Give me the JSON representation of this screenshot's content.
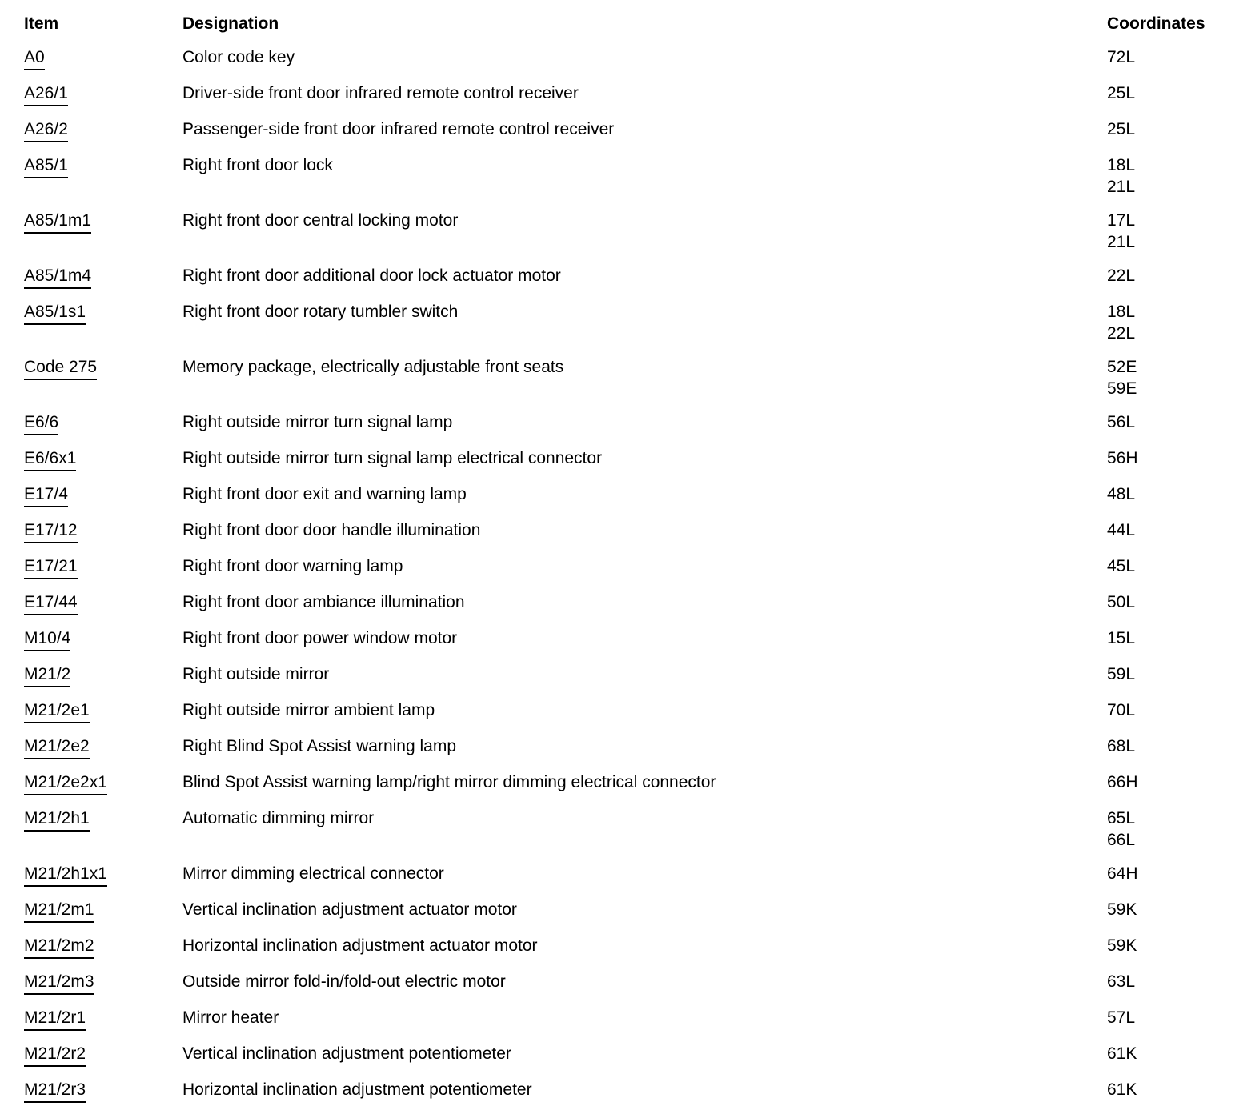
{
  "colors": {
    "text": "#000000",
    "background": "#ffffff"
  },
  "table": {
    "headers": {
      "item": "Item",
      "designation": "Designation",
      "coordinates": "Coordinates"
    },
    "rows": [
      {
        "item": "A0",
        "designation": "Color code key",
        "coordinates": [
          "72L"
        ]
      },
      {
        "item": "A26/1",
        "designation": "Driver-side front door infrared remote control receiver",
        "coordinates": [
          "25L"
        ]
      },
      {
        "item": "A26/2",
        "designation": "Passenger-side front door infrared remote control receiver",
        "coordinates": [
          "25L"
        ]
      },
      {
        "item": "A85/1",
        "designation": "Right front door lock",
        "coordinates": [
          "18L",
          "21L"
        ]
      },
      {
        "item": "A85/1m1",
        "designation": "Right front door central locking motor",
        "coordinates": [
          "17L",
          "21L"
        ]
      },
      {
        "item": "A85/1m4",
        "designation": "Right front door additional door lock actuator motor",
        "coordinates": [
          "22L"
        ]
      },
      {
        "item": "A85/1s1",
        "designation": "Right front door rotary tumbler switch",
        "coordinates": [
          "18L",
          "22L"
        ]
      },
      {
        "item": "Code 275",
        "designation": "Memory package, electrically adjustable front seats",
        "coordinates": [
          "52E",
          "59E"
        ]
      },
      {
        "item": "E6/6",
        "designation": "Right outside mirror turn signal lamp",
        "coordinates": [
          "56L"
        ]
      },
      {
        "item": "E6/6x1",
        "designation": "Right outside mirror turn signal lamp electrical connector",
        "coordinates": [
          "56H"
        ]
      },
      {
        "item": "E17/4",
        "designation": "Right front door exit and warning lamp",
        "coordinates": [
          "48L"
        ]
      },
      {
        "item": "E17/12",
        "designation": "Right front door door handle illumination",
        "coordinates": [
          "44L"
        ]
      },
      {
        "item": "E17/21",
        "designation": "Right front door warning lamp",
        "coordinates": [
          "45L"
        ]
      },
      {
        "item": "E17/44",
        "designation": "Right front door ambiance illumination",
        "coordinates": [
          "50L"
        ]
      },
      {
        "item": "M10/4",
        "designation": "Right front door power window motor",
        "coordinates": [
          "15L"
        ]
      },
      {
        "item": "M21/2",
        "designation": "Right outside mirror",
        "coordinates": [
          "59L"
        ]
      },
      {
        "item": "M21/2e1",
        "designation": "Right outside mirror ambient lamp",
        "coordinates": [
          "70L"
        ]
      },
      {
        "item": "M21/2e2",
        "designation": "Right Blind Spot Assist warning lamp",
        "coordinates": [
          "68L"
        ]
      },
      {
        "item": "M21/2e2x1",
        "designation": "Blind Spot Assist warning lamp/right mirror dimming electrical connector",
        "coordinates": [
          "66H"
        ]
      },
      {
        "item": "M21/2h1",
        "designation": "Automatic dimming mirror",
        "coordinates": [
          "65L",
          "66L"
        ]
      },
      {
        "item": "M21/2h1x1",
        "designation": "Mirror dimming electrical connector",
        "coordinates": [
          "64H"
        ]
      },
      {
        "item": "M21/2m1",
        "designation": "Vertical inclination adjustment actuator motor",
        "coordinates": [
          "59K"
        ]
      },
      {
        "item": "M21/2m2",
        "designation": "Horizontal inclination adjustment actuator motor",
        "coordinates": [
          "59K"
        ]
      },
      {
        "item": "M21/2m3",
        "designation": "Outside mirror fold-in/fold-out electric motor",
        "coordinates": [
          "63L"
        ]
      },
      {
        "item": "M21/2r1",
        "designation": "Mirror heater",
        "coordinates": [
          "57L"
        ]
      },
      {
        "item": "M21/2r2",
        "designation": "Vertical inclination adjustment potentiometer",
        "coordinates": [
          "61K"
        ]
      },
      {
        "item": "M21/2r3",
        "designation": "Horizontal inclination adjustment potentiometer",
        "coordinates": [
          "61K"
        ]
      }
    ]
  }
}
